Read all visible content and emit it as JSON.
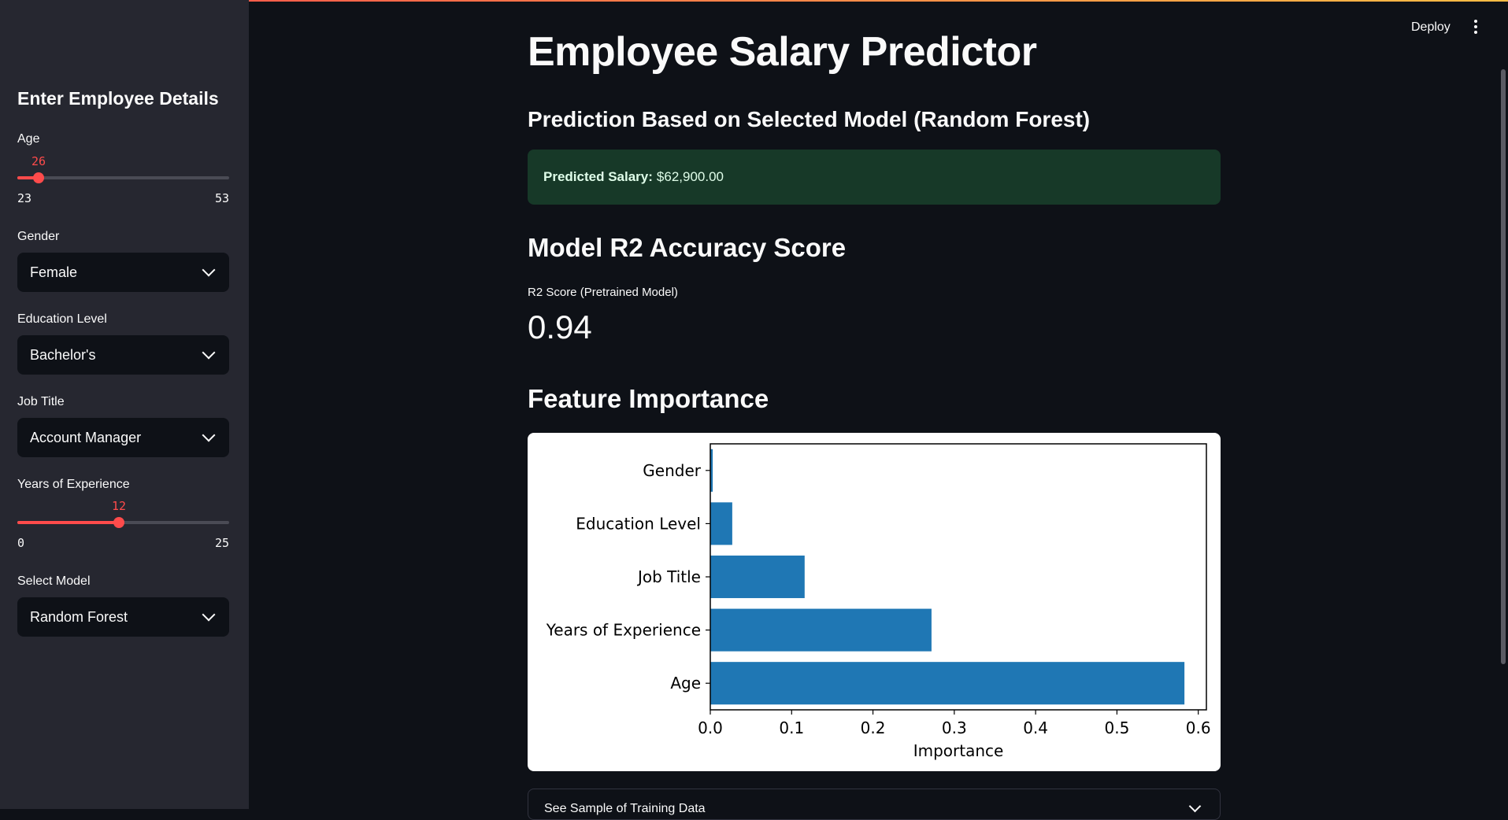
{
  "header": {
    "deploy_label": "Deploy"
  },
  "sidebar": {
    "title": "Enter Employee Details",
    "age": {
      "label": "Age",
      "value": 26,
      "min": 23,
      "max": 53
    },
    "gender": {
      "label": "Gender",
      "value": "Female"
    },
    "education": {
      "label": "Education Level",
      "value": "Bachelor's"
    },
    "job_title": {
      "label": "Job Title",
      "value": "Account Manager"
    },
    "experience": {
      "label": "Years of Experience",
      "value": 12,
      "min": 0,
      "max": 25
    },
    "model": {
      "label": "Select Model",
      "value": "Random Forest"
    }
  },
  "main": {
    "title": "Employee Salary Predictor",
    "prediction_heading": "Prediction Based on Selected Model (Random Forest)",
    "prediction": {
      "label": "Predicted Salary:",
      "value": "$62,900.00"
    },
    "r2_heading": "Model R2 Accuracy Score",
    "metric_label": "R2 Score (Pretrained Model)",
    "metric_value": "0.94",
    "feature_heading": "Feature Importance",
    "expander_label": "See Sample of Training Data"
  },
  "colors": {
    "accent": "#ff4b4b",
    "bar": "#1f77b4",
    "success_bg": "#173928"
  },
  "chart_data": {
    "type": "bar",
    "orientation": "horizontal",
    "categories": [
      "Gender",
      "Education Level",
      "Job Title",
      "Years of Experience",
      "Age"
    ],
    "values": [
      0.003,
      0.027,
      0.116,
      0.272,
      0.583
    ],
    "xlabel": "Importance",
    "ylabel": "",
    "xlim": [
      0,
      0.61
    ],
    "xticks": [
      "0.0",
      "0.1",
      "0.2",
      "0.3",
      "0.4",
      "0.5",
      "0.6"
    ],
    "grid": false
  }
}
